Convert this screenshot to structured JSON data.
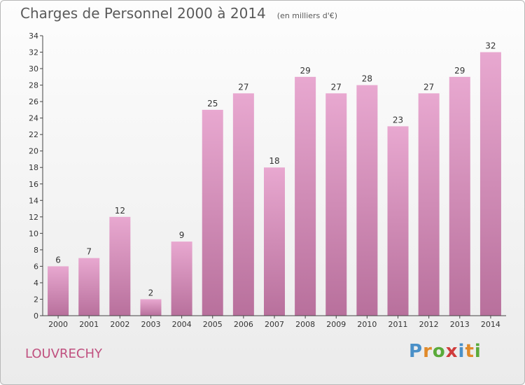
{
  "header": {
    "title": "Charges de Personnel 2000 à 2014",
    "subtitle": "(en milliers d'€)"
  },
  "commune": "LOUVRECHY",
  "logo": {
    "text": "Proxiti",
    "letter_colors": [
      "#4a90c8",
      "#e08a2a",
      "#5aaa3a",
      "#d03c3c",
      "#4a90c8",
      "#e08a2a",
      "#5aaa3a"
    ]
  },
  "colors": {
    "bar_light": "#e8a8d0",
    "bar_dark": "#b8709c",
    "axis": "#444444",
    "grid": "#d0d0d0",
    "title": "#5a5a5a",
    "commune": "#c0507f"
  },
  "chart_data": {
    "type": "bar",
    "title": "Charges de Personnel 2000 à 2014",
    "subtitle": "(en milliers d'€)",
    "categories": [
      "2000",
      "2001",
      "2002",
      "2003",
      "2004",
      "2005",
      "2006",
      "2007",
      "2008",
      "2009",
      "2010",
      "2011",
      "2012",
      "2013",
      "2014"
    ],
    "values": [
      6,
      7,
      12,
      2,
      9,
      25,
      27,
      18,
      29,
      27,
      28,
      23,
      27,
      29,
      32
    ],
    "ylim": [
      0,
      34
    ],
    "yticks": [
      0,
      2,
      4,
      6,
      8,
      10,
      12,
      14,
      16,
      18,
      20,
      22,
      24,
      26,
      28,
      30,
      32,
      34
    ],
    "xlabel": "",
    "ylabel": "",
    "data_labels": true,
    "grid": false
  }
}
